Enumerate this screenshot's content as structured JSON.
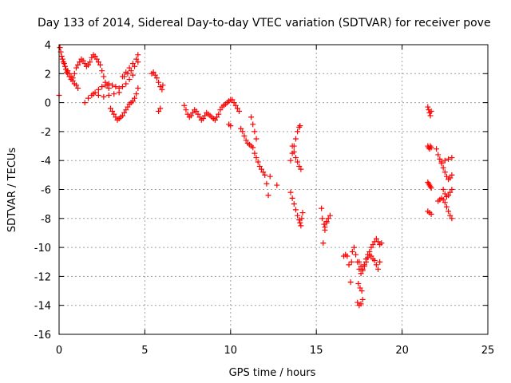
{
  "chart_data": {
    "type": "scatter",
    "title": "Day 133 of 2014, Sidereal Day-to-day VTEC variation (SDTVAR) for receiver pove",
    "xlabel": "GPS time / hours",
    "ylabel": "SDTVAR / TECUs",
    "xlim": [
      0,
      25
    ],
    "ylim": [
      -16,
      4
    ],
    "xticks": [
      0,
      5,
      10,
      15,
      20,
      25
    ],
    "yticks": [
      -16,
      -14,
      -12,
      -10,
      -8,
      -6,
      -4,
      -2,
      0,
      2,
      4
    ],
    "grid": true,
    "marker": "+",
    "color": "#ff0000",
    "series": [
      {
        "name": "SDTVAR",
        "x": [
          0.0,
          0.05,
          0.1,
          0.15,
          0.2,
          0.25,
          0.3,
          0.35,
          0.4,
          0.45,
          0.5,
          0.6,
          0.7,
          0.8,
          0.9,
          1.0,
          1.1,
          0.5,
          0.6,
          0.7,
          0.8,
          0.9,
          1.0,
          1.1,
          1.2,
          1.3,
          1.4,
          1.5,
          1.6,
          1.7,
          1.8,
          1.9,
          2.0,
          2.1,
          2.2,
          2.3,
          2.4,
          2.5,
          2.6,
          2.7,
          2.8,
          2.9,
          1.5,
          1.7,
          1.9,
          2.1,
          2.3,
          2.5,
          2.7,
          2.9,
          3.1,
          3.3,
          3.5,
          3.7,
          3.9,
          4.1,
          4.3,
          2.0,
          2.3,
          2.6,
          2.9,
          3.2,
          3.5,
          3.7,
          3.9,
          4.1,
          4.3,
          4.5,
          4.6,
          4.6,
          4.5,
          4.4,
          4.3,
          4.2,
          4.1,
          4.0,
          3.9,
          3.8,
          3.7,
          3.6,
          3.5,
          3.4,
          3.3,
          3.2,
          3.1,
          3.0,
          3.8,
          4.0,
          4.2,
          4.4,
          4.6,
          5.4,
          5.5,
          5.6,
          5.7,
          5.8,
          5.9,
          6.0,
          6.05,
          5.9,
          5.8,
          7.3,
          7.4,
          7.5,
          7.6,
          7.7,
          7.8,
          7.9,
          8.0,
          8.1,
          8.2,
          8.3,
          8.4,
          8.5,
          8.6,
          8.7,
          8.8,
          8.9,
          9.0,
          9.1,
          9.2,
          9.3,
          9.4,
          9.5,
          9.6,
          9.7,
          9.8,
          9.9,
          10.0,
          10.1,
          10.2,
          10.3,
          10.4,
          10.5,
          9.9,
          10.0,
          10.6,
          10.7,
          10.8,
          10.9,
          11.0,
          11.1,
          11.2,
          11.3,
          11.4,
          11.5,
          11.6,
          11.7,
          11.8,
          11.9,
          12.0,
          12.1,
          12.2,
          11.2,
          11.3,
          11.4,
          11.5,
          12.3,
          12.7,
          13.5,
          13.6,
          13.7,
          13.8,
          13.9,
          14.0,
          14.05,
          14.1,
          14.15,
          14.2,
          13.6,
          13.7,
          13.8,
          13.9,
          14.0,
          14.1,
          13.5,
          13.6,
          13.7,
          13.8,
          13.9,
          14.0,
          14.05,
          15.3,
          15.35,
          15.4,
          15.5,
          15.6,
          15.7,
          15.8,
          15.45,
          15.5,
          15.6,
          16.6,
          16.7,
          16.8,
          16.9,
          17.0,
          17.05,
          17.1,
          17.2,
          17.3,
          17.4,
          17.5,
          17.6,
          17.7,
          17.8,
          17.9,
          18.0,
          18.1,
          18.2,
          18.3,
          18.4,
          18.5,
          18.6,
          18.7,
          18.8,
          17.5,
          17.6,
          17.7,
          17.8,
          17.9,
          18.0,
          18.1,
          18.2,
          18.3,
          18.4,
          18.5,
          18.6,
          18.7,
          17.4,
          17.5,
          17.6,
          17.7,
          17.45,
          17.55,
          17.65,
          21.5,
          21.55,
          21.6,
          21.65,
          21.7,
          21.5,
          21.55,
          21.6,
          21.65,
          21.7,
          21.5,
          21.55,
          21.6,
          21.65,
          21.7,
          21.5,
          21.6,
          21.7,
          22.0,
          22.1,
          22.2,
          22.3,
          22.4,
          22.5,
          22.6,
          22.7,
          22.8,
          22.9,
          22.4,
          22.5,
          22.6,
          22.7,
          22.8,
          22.9,
          22.3,
          22.4,
          22.5,
          22.6,
          22.7,
          22.8,
          22.9,
          22.3,
          22.5,
          22.7,
          22.9,
          22.1,
          22.2
        ],
        "y": [
          0.5,
          3.8,
          3.5,
          3.2,
          3.0,
          2.8,
          2.7,
          2.5,
          2.3,
          2.1,
          2.0,
          1.8,
          1.6,
          1.5,
          1.3,
          1.2,
          1.0,
          2.2,
          2.0,
          1.8,
          1.7,
          2.0,
          2.4,
          2.6,
          2.8,
          3.0,
          2.9,
          2.7,
          2.5,
          2.6,
          2.8,
          3.1,
          3.3,
          3.2,
          3.0,
          2.8,
          2.6,
          2.2,
          1.8,
          1.4,
          1.2,
          1.0,
          0.0,
          0.3,
          0.5,
          0.7,
          0.9,
          1.1,
          1.2,
          1.3,
          1.2,
          1.1,
          1.0,
          1.1,
          1.3,
          1.6,
          1.9,
          0.6,
          0.5,
          0.4,
          0.5,
          0.6,
          0.7,
          1.8,
          2.1,
          2.4,
          2.7,
          3.0,
          3.3,
          1.0,
          0.6,
          0.3,
          0.1,
          0.0,
          -0.1,
          -0.3,
          -0.5,
          -0.7,
          -0.9,
          -1.0,
          -1.1,
          -1.2,
          -1.0,
          -0.8,
          -0.6,
          -0.4,
          1.8,
          2.0,
          2.2,
          2.5,
          2.8,
          2.0,
          2.1,
          1.9,
          1.7,
          1.4,
          1.1,
          0.9,
          1.2,
          -0.4,
          -0.6,
          -0.2,
          -0.5,
          -0.8,
          -1.0,
          -0.9,
          -0.7,
          -0.5,
          -0.6,
          -0.8,
          -1.0,
          -1.2,
          -1.1,
          -0.9,
          -0.7,
          -0.8,
          -0.9,
          -1.0,
          -1.1,
          -1.2,
          -1.0,
          -0.8,
          -0.5,
          -0.3,
          -0.2,
          -0.1,
          0.0,
          0.1,
          0.2,
          0.2,
          0.0,
          -0.2,
          -0.4,
          -0.6,
          -1.5,
          -1.6,
          -1.8,
          -2.0,
          -2.3,
          -2.6,
          -2.8,
          -2.9,
          -3.0,
          -3.1,
          -3.5,
          -3.8,
          -4.1,
          -4.4,
          -4.6,
          -4.8,
          -5.0,
          -5.6,
          -6.4,
          -1.0,
          -1.5,
          -2.0,
          -2.5,
          -5.1,
          -5.7,
          -6.2,
          -6.6,
          -7.0,
          -7.4,
          -7.8,
          -8.1,
          -8.3,
          -8.5,
          -8.0,
          -7.6,
          -3.0,
          -3.4,
          -3.8,
          -4.1,
          -4.4,
          -4.6,
          -4.0,
          -3.5,
          -3.0,
          -2.5,
          -2.0,
          -1.7,
          -1.6,
          -7.3,
          -8.0,
          -9.7,
          -8.6,
          -8.3,
          -8.0,
          -7.8,
          -8.4,
          -8.8,
          -8.2,
          -10.6,
          -10.5,
          -10.6,
          -11.2,
          -12.4,
          -11.0,
          -10.3,
          -10.0,
          -10.5,
          -11.0,
          -11.5,
          -11.8,
          -11.6,
          -11.2,
          -10.8,
          -10.5,
          -10.3,
          -10.0,
          -9.8,
          -9.6,
          -9.4,
          -9.6,
          -9.8,
          -9.7,
          -11.0,
          -11.3,
          -11.5,
          -11.3,
          -11.0,
          -10.7,
          -10.5,
          -10.6,
          -10.8,
          -10.9,
          -11.2,
          -11.5,
          -11.0,
          -13.8,
          -14.0,
          -13.9,
          -13.6,
          -12.5,
          -12.8,
          -13.0,
          -0.3,
          -0.5,
          -0.7,
          -0.9,
          -0.6,
          -3.0,
          -3.1,
          -3.2,
          -3.0,
          -3.1,
          -5.5,
          -5.6,
          -5.7,
          -5.8,
          -5.9,
          -7.5,
          -7.6,
          -7.7,
          -3.2,
          -3.6,
          -3.9,
          -4.2,
          -4.5,
          -4.8,
          -5.1,
          -5.3,
          -5.2,
          -5.0,
          -6.0,
          -6.3,
          -6.5,
          -6.4,
          -6.2,
          -6.0,
          -6.6,
          -6.7,
          -6.9,
          -7.2,
          -7.5,
          -7.8,
          -8.0,
          -4.1,
          -4.0,
          -3.9,
          -3.8,
          -6.8,
          -6.7
        ]
      }
    ]
  }
}
